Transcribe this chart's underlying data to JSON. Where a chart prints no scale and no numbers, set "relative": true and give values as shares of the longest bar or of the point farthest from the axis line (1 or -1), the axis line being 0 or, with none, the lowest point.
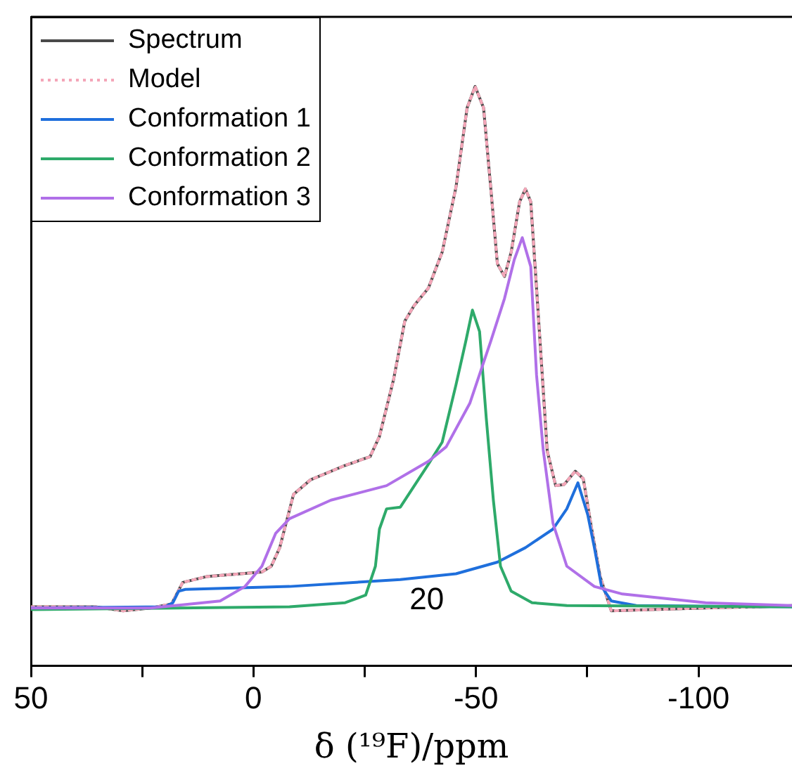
{
  "chart_data": {
    "type": "line",
    "relative": true,
    "xlabel": "δ (¹⁹F)/ppm",
    "xlim": [
      50,
      -121
    ],
    "xticks": [
      50,
      {
        "value": 25,
        "label": null
      },
      0,
      {
        "value": -25,
        "label": null
      },
      -50,
      {
        "value": -75,
        "label": null
      },
      -100
    ],
    "grid": false,
    "legend": "top left",
    "marker": "none",
    "tick_labels": "x",
    "annotations": [
      "20"
    ],
    "series": [
      {
        "name": "Spectrum",
        "color": "#4a4a4a",
        "x": [
          50,
          35.5,
          29.3,
          23.1,
          18.4,
          15.9,
          10.6,
          -1.9,
          -4.0,
          -5.9,
          -9.0,
          -12.8,
          -20.6,
          -26.2,
          -28.3,
          -31.5,
          -34.0,
          -36.1,
          -39.3,
          -42.4,
          -45.5,
          -48.0,
          -49.8,
          -51.7,
          -53.3,
          -54.8,
          -56.4,
          -57.9,
          -59.8,
          -61.1,
          -62.3,
          -63.6,
          -66.0,
          -67.9,
          -69.8,
          -72.3,
          -74.1,
          -76.0,
          -77.9,
          -80.4,
          -89.1,
          -101.6,
          -114.0,
          -121
        ],
        "values": [
          0.102,
          0.102,
          0.095,
          0.1,
          0.107,
          0.144,
          0.154,
          0.162,
          0.172,
          0.204,
          0.296,
          0.321,
          0.346,
          0.361,
          0.396,
          0.495,
          0.595,
          0.622,
          0.652,
          0.714,
          0.826,
          0.963,
          1,
          0.963,
          0.826,
          0.694,
          0.672,
          0.714,
          0.801,
          0.823,
          0.801,
          0.652,
          0.371,
          0.311,
          0.313,
          0.336,
          0.323,
          0.236,
          0.154,
          0.095,
          0.097,
          0.1,
          0.102,
          0.104
        ]
      },
      {
        "name": "Model",
        "color": "#f4a6b8",
        "line_style": "dotted",
        "x": [
          50,
          35.5,
          29.3,
          23.1,
          18.4,
          15.9,
          10.6,
          -1.9,
          -4.0,
          -5.9,
          -9.0,
          -12.8,
          -20.6,
          -26.2,
          -28.3,
          -31.5,
          -34.0,
          -36.1,
          -39.3,
          -42.4,
          -45.5,
          -48.0,
          -49.8,
          -51.7,
          -53.3,
          -54.8,
          -56.4,
          -57.9,
          -59.8,
          -61.1,
          -62.3,
          -63.6,
          -66.0,
          -67.9,
          -69.8,
          -72.3,
          -74.1,
          -76.0,
          -77.9,
          -80.4,
          -89.1,
          -101.6,
          -114.0,
          -121
        ],
        "values": [
          0.102,
          0.102,
          0.095,
          0.1,
          0.107,
          0.144,
          0.154,
          0.162,
          0.172,
          0.204,
          0.296,
          0.321,
          0.346,
          0.361,
          0.396,
          0.495,
          0.595,
          0.622,
          0.652,
          0.714,
          0.826,
          0.963,
          1,
          0.963,
          0.826,
          0.694,
          0.672,
          0.714,
          0.801,
          0.823,
          0.801,
          0.652,
          0.371,
          0.311,
          0.313,
          0.336,
          0.323,
          0.236,
          0.154,
          0.095,
          0.097,
          0.1,
          0.102,
          0.104
        ]
      },
      {
        "name": "Conformation 1",
        "color": "#1f6fdc",
        "x": [
          50,
          19.9,
          18.1,
          16.8,
          15.3,
          -8.1,
          -33.0,
          -45.5,
          -54.8,
          -61.1,
          -67.3,
          -70.4,
          -72.9,
          -75.1,
          -76.6,
          -78.2,
          -80.4,
          -86,
          -121
        ],
        "values": [
          0.1,
          0.102,
          0.109,
          0.129,
          0.132,
          0.137,
          0.149,
          0.159,
          0.179,
          0.204,
          0.236,
          0.271,
          0.316,
          0.261,
          0.204,
          0.137,
          0.112,
          0.104,
          0.102
        ]
      },
      {
        "name": "Conformation 2",
        "color": "#2eaa6a",
        "x": [
          50,
          -8.1,
          -20.6,
          -25.2,
          -27.4,
          -28.3,
          -29.9,
          -33.0,
          -39.3,
          -42.4,
          -45.5,
          -47.7,
          -49.2,
          -50.8,
          -52.3,
          -53.9,
          -55.5,
          -57.9,
          -62.6,
          -70.4,
          -121
        ],
        "values": [
          0.097,
          0.102,
          0.109,
          0.122,
          0.172,
          0.236,
          0.271,
          0.274,
          0.348,
          0.386,
          0.485,
          0.56,
          0.614,
          0.577,
          0.428,
          0.286,
          0.172,
          0.129,
          0.109,
          0.104,
          0.102
        ]
      },
      {
        "name": "Conformation 3",
        "color": "#b070e8",
        "x": [
          50,
          23.1,
          7.5,
          1.9,
          -1.9,
          -5.0,
          -8.1,
          -17.4,
          -29.9,
          -39.3,
          -43.3,
          -48.6,
          -53.3,
          -56.4,
          -58.6,
          -60.4,
          -62.3,
          -63.6,
          -65.1,
          -67.3,
          -70.4,
          -76.6,
          -82.9,
          -101.6,
          -121
        ],
        "values": [
          0.1,
          0.1,
          0.112,
          0.137,
          0.172,
          0.229,
          0.254,
          0.286,
          0.311,
          0.353,
          0.378,
          0.453,
          0.56,
          0.634,
          0.701,
          0.739,
          0.689,
          0.502,
          0.373,
          0.246,
          0.172,
          0.137,
          0.124,
          0.109,
          0.104
        ]
      }
    ]
  }
}
